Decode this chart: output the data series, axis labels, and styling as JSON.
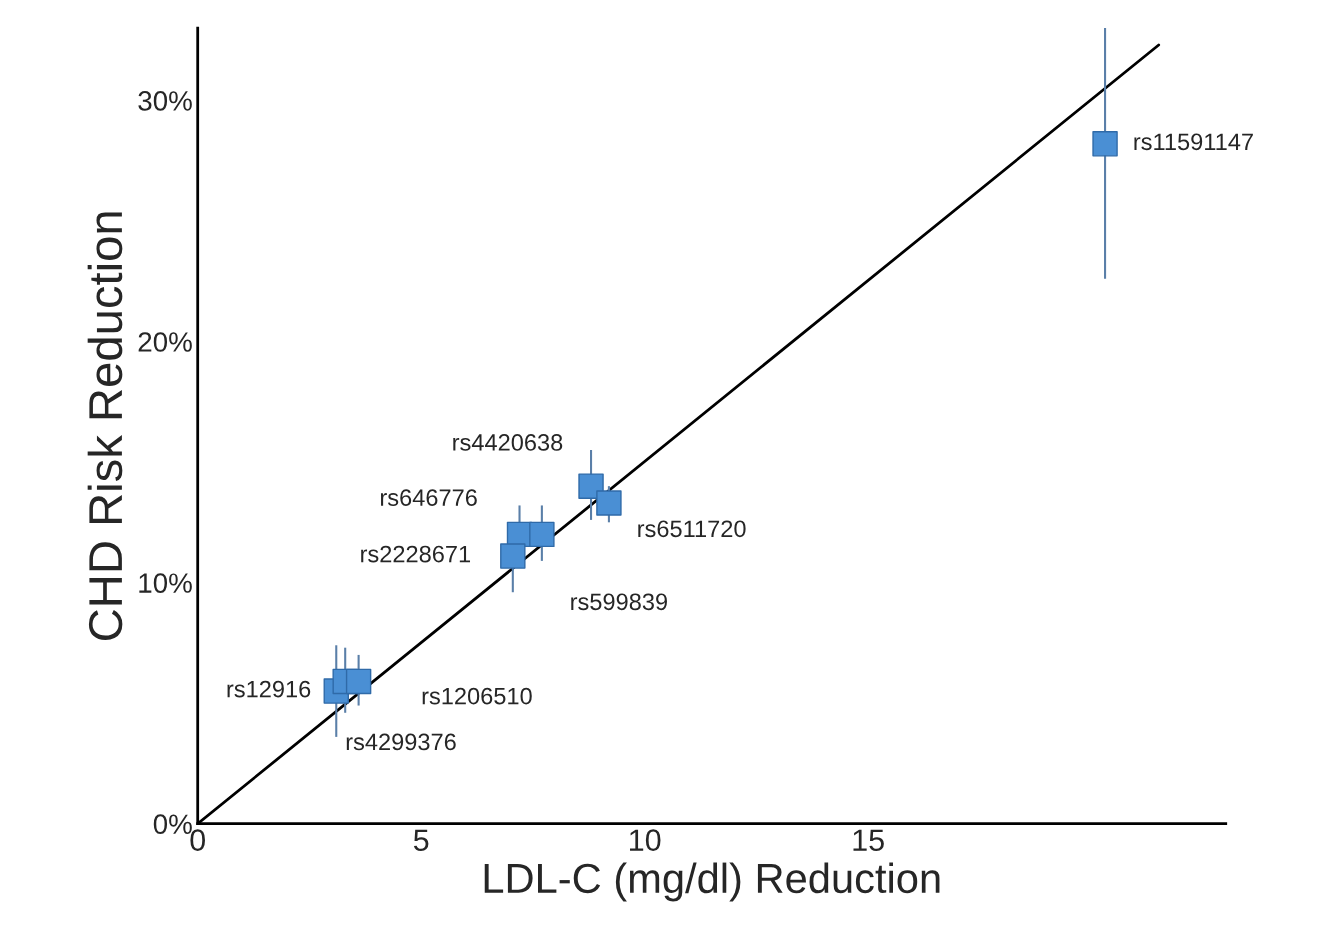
{
  "chart_data": {
    "type": "scatter",
    "xlabel": "LDL-C (mg/dl) Reduction",
    "ylabel": "CHD Risk Reduction",
    "xlim": [
      0,
      23
    ],
    "ylim": [
      0,
      33
    ],
    "xticks": [
      0,
      5,
      10,
      15
    ],
    "yticks": [
      {
        "value": 0,
        "label": "0%"
      },
      {
        "value": 10,
        "label": "10%"
      },
      {
        "value": 20,
        "label": "20%"
      },
      {
        "value": 30,
        "label": "30%"
      }
    ],
    "grid": false,
    "legend": false,
    "series": [
      {
        "color": "#4a8fd4",
        "marker": "square",
        "x": [
          20.3,
          8.8,
          9.2,
          7.2,
          7.7,
          7.05,
          3.1,
          3.3,
          3.6
        ],
        "values": [
          28.2,
          14.0,
          13.3,
          12.0,
          12.0,
          11.1,
          5.5,
          5.9,
          5.9
        ],
        "errors": [
          [
            22.6,
            33
          ],
          [
            12.6,
            15.5
          ],
          [
            12.5,
            14.0
          ],
          [
            12.0,
            13.2
          ],
          [
            10.9,
            13.2
          ],
          [
            9.6,
            11.1
          ],
          [
            3.6,
            7.4
          ],
          [
            4.6,
            7.3
          ],
          [
            4.9,
            7.0
          ]
        ]
      },
      {
        "type": "line",
        "color": "#000000",
        "x": [
          0,
          21.5
        ],
        "values": [
          0,
          32.3
        ]
      }
    ],
    "annotations": [
      {
        "text": "rs11591147",
        "x": 20.3,
        "y": 28.2
      },
      {
        "text": "rs4420638",
        "x": 8.8,
        "y": 14.0
      },
      {
        "text": "rs6511720",
        "x": 9.2,
        "y": 13.3
      },
      {
        "text": "rs646776",
        "x": 7.2,
        "y": 12.0
      },
      {
        "text": "rs599839",
        "x": 7.7,
        "y": 12.0
      },
      {
        "text": "rs2228671",
        "x": 7.05,
        "y": 11.1
      },
      {
        "text": "rs12916",
        "x": 3.1,
        "y": 5.5
      },
      {
        "text": "rs4299376",
        "x": 3.3,
        "y": 5.9
      },
      {
        "text": "rs1206510",
        "x": 3.6,
        "y": 5.9
      }
    ]
  }
}
